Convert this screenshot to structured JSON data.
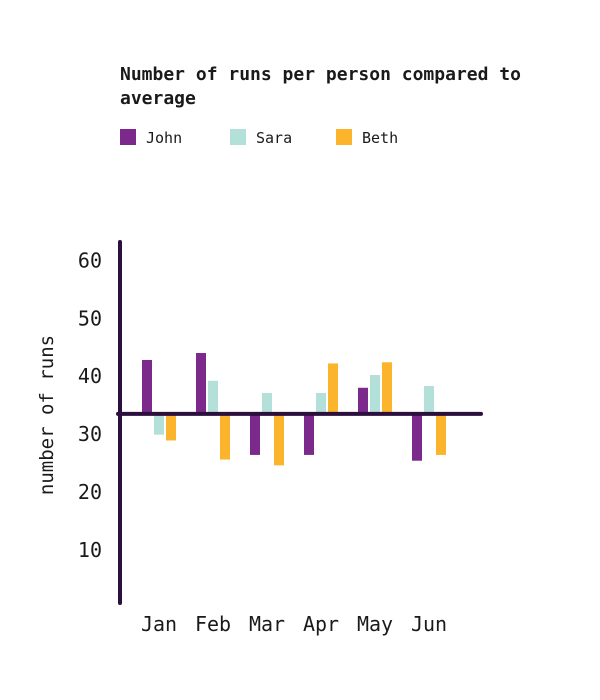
{
  "chart_data": {
    "type": "bar",
    "title": "Number of runs per person compared to average",
    "xlabel": "",
    "ylabel": "number of runs",
    "categories": [
      "Jan",
      "Feb",
      "Mar",
      "Apr",
      "May",
      "Jun"
    ],
    "yticks": [
      "10",
      "20",
      "30",
      "40",
      "50",
      "60"
    ],
    "baseline": 33.5,
    "ylim": [
      1,
      63
    ],
    "legend_position": "top-left",
    "grid": false,
    "series": [
      {
        "name": "John",
        "color": "#7b2a8c",
        "values": [
          42.8,
          44.0,
          26.4,
          26.4,
          38.0,
          25.4
        ]
      },
      {
        "name": "Sara",
        "color": "#b3e0d9",
        "values": [
          29.9,
          39.2,
          37.1,
          37.1,
          40.2,
          38.3
        ]
      },
      {
        "name": "Beth",
        "color": "#fbb42b",
        "values": [
          28.9,
          25.6,
          24.6,
          42.2,
          42.4,
          26.4
        ]
      }
    ],
    "colors": {
      "axis": "#2b0f3d",
      "text": "#1a1a1a"
    }
  }
}
